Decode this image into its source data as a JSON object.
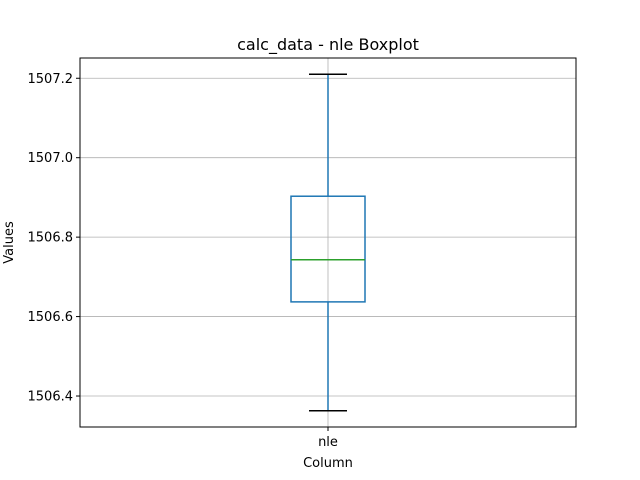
{
  "chart_data": {
    "type": "box",
    "title": "calc_data - nle Boxplot",
    "xlabel": "Column",
    "ylabel": "Values",
    "categories": [
      "nle"
    ],
    "boxes": [
      {
        "name": "nle",
        "whisker_low": 1506.363,
        "q1": 1506.637,
        "median": 1506.743,
        "q3": 1506.903,
        "whisker_high": 1507.21
      }
    ],
    "ylim": [
      1506.322,
      1507.251
    ],
    "yticks": [
      1506.4,
      1506.6,
      1506.8,
      1507.0,
      1507.2
    ],
    "ytick_labels": [
      "1506.4",
      "1506.6",
      "1506.8",
      "1507.0",
      "1507.2"
    ],
    "grid": true,
    "colors": {
      "box": "#1f77b4",
      "whisker": "#1f77b4",
      "median": "#2ca02c",
      "cap": "#000000",
      "grid": "#b0b0b0"
    }
  }
}
